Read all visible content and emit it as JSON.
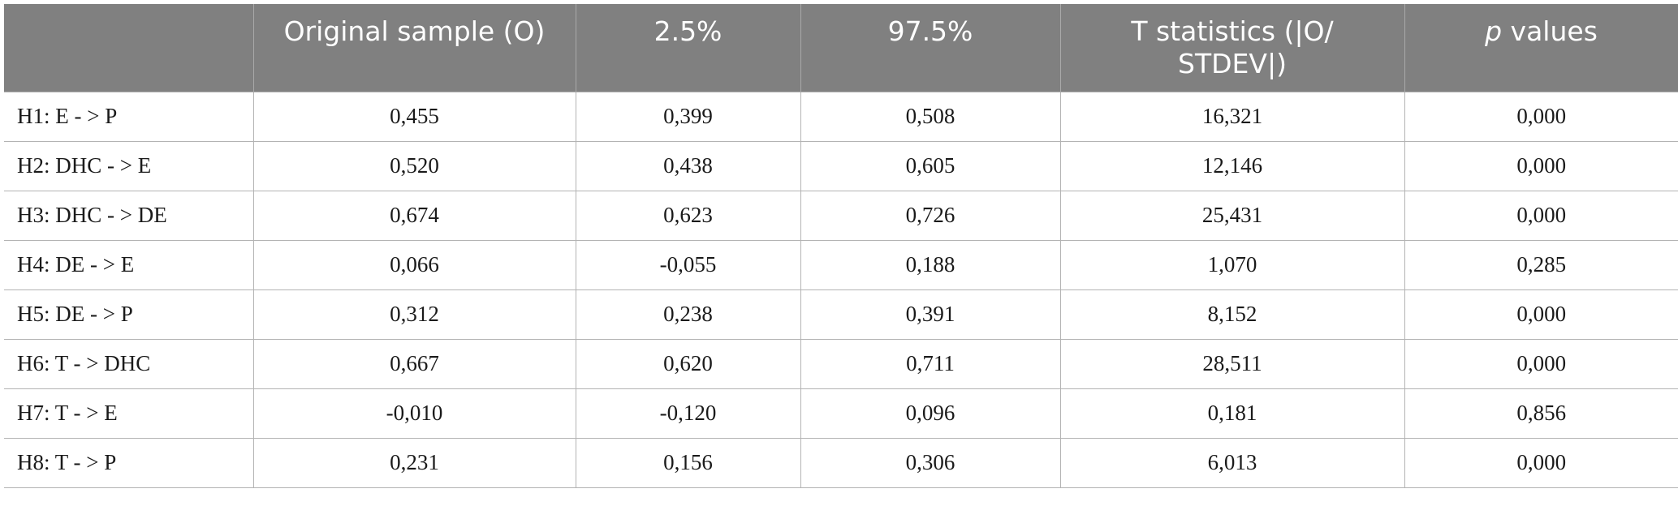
{
  "table": {
    "headers": {
      "c0": "",
      "c1": "Original sample (O)",
      "c2": "2.5%",
      "c3": "97.5%",
      "c4": "T statistics (|O/ STDEV|)",
      "c5_italic": "p",
      "c5_rest": " values"
    },
    "rows": [
      {
        "hypothesis": "H1: E - > P",
        "original": "0,455",
        "p2_5": "0,399",
        "p97_5": "0,508",
        "t_stat": "16,321",
        "p_value": "0,000"
      },
      {
        "hypothesis": "H2: DHC - > E",
        "original": "0,520",
        "p2_5": "0,438",
        "p97_5": "0,605",
        "t_stat": "12,146",
        "p_value": "0,000"
      },
      {
        "hypothesis": "H3: DHC - > DE",
        "original": "0,674",
        "p2_5": "0,623",
        "p97_5": "0,726",
        "t_stat": "25,431",
        "p_value": "0,000"
      },
      {
        "hypothesis": "H4: DE - > E",
        "original": "0,066",
        "p2_5": "-0,055",
        "p97_5": "0,188",
        "t_stat": "1,070",
        "p_value": "0,285"
      },
      {
        "hypothesis": "H5: DE - > P",
        "original": "0,312",
        "p2_5": "0,238",
        "p97_5": "0,391",
        "t_stat": "8,152",
        "p_value": "0,000"
      },
      {
        "hypothesis": "H6: T - > DHC",
        "original": "0,667",
        "p2_5": "0,620",
        "p97_5": "0,711",
        "t_stat": "28,511",
        "p_value": "0,000"
      },
      {
        "hypothesis": "H7: T - > E",
        "original": "-0,010",
        "p2_5": "-0,120",
        "p97_5": "0,096",
        "t_stat": "0,181",
        "p_value": "0,856"
      },
      {
        "hypothesis": "H8: T - > P",
        "original": "0,231",
        "p2_5": "0,156",
        "p97_5": "0,306",
        "t_stat": "6,013",
        "p_value": "0,000"
      }
    ]
  },
  "colors": {
    "header_bg": "#808080",
    "header_text": "#ffffff",
    "grid_line": "#b3b3b3",
    "body_text": "#1a1a1a"
  }
}
